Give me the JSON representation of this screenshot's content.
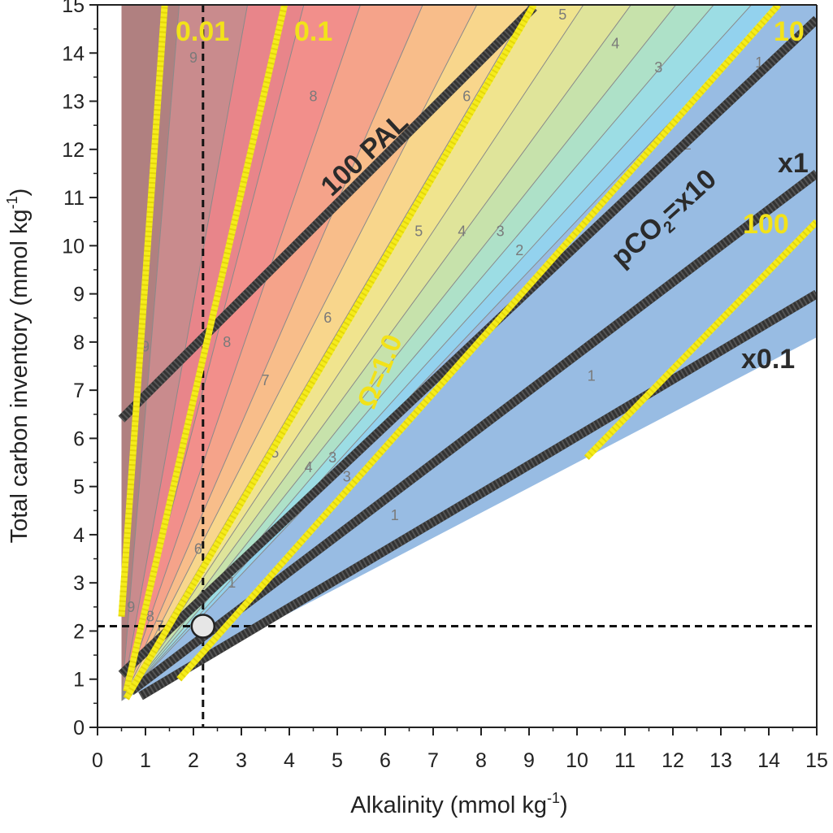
{
  "chart_data": {
    "type": "contour",
    "xlabel": "Alkalinity (mmol kg",
    "xlabel_sup": "-1",
    "xlabel_end": ")",
    "ylabel": "Total carbon inventory (mmol kg",
    "ylabel_sup": "-1",
    "ylabel_end": ")",
    "xlim": [
      0,
      15
    ],
    "ylim": [
      0,
      15
    ],
    "x_ticks": [
      0,
      1,
      2,
      3,
      4,
      5,
      6,
      7,
      8,
      9,
      10,
      11,
      12,
      13,
      14,
      15
    ],
    "y_ticks": [
      0,
      1,
      2,
      3,
      4,
      5,
      6,
      7,
      8,
      9,
      10,
      11,
      12,
      13,
      14,
      15
    ],
    "grid": false,
    "domain_boundary": {
      "left_x": 0.5,
      "lower_edge": [
        [
          0.5,
          0.55
        ],
        [
          15,
          8.1
        ]
      ]
    },
    "contour_bands": [
      {
        "slope": 40,
        "color": "#b08080"
      },
      {
        "slope": 12,
        "color": "#c98b8d"
      },
      {
        "slope": 5.5,
        "color": "#e8858a"
      },
      {
        "slope": 3.8,
        "color": "#f28f8b"
      },
      {
        "slope": 2.9,
        "color": "#f5a38a"
      },
      {
        "slope": 2.3,
        "color": "#f8bd8a"
      },
      {
        "slope": 1.95,
        "color": "#f8d68c"
      },
      {
        "slope": 1.7,
        "color": "#f0e48e"
      },
      {
        "slope": 1.5,
        "color": "#dfe49a"
      },
      {
        "slope": 1.36,
        "color": "#c7e2ab"
      },
      {
        "slope": 1.25,
        "color": "#aee1c8"
      },
      {
        "slope": 1.17,
        "color": "#9cdde4"
      },
      {
        "slope": 1.1,
        "color": "#93d2ee"
      },
      {
        "slope": 1.05,
        "color": "#98bce3"
      },
      {
        "slope": 0.3,
        "color": "#97a0cf"
      }
    ],
    "contour_labels": [
      {
        "text": "9",
        "x": 2.0,
        "y": 13.8
      },
      {
        "text": "8",
        "x": 4.5,
        "y": 13.0
      },
      {
        "text": "5",
        "x": 9.7,
        "y": 14.7
      },
      {
        "text": "4",
        "x": 10.8,
        "y": 14.1
      },
      {
        "text": "3",
        "x": 11.7,
        "y": 13.6
      },
      {
        "text": "6",
        "x": 7.7,
        "y": 13.0
      },
      {
        "text": "2",
        "x": 12.3,
        "y": 12.0
      },
      {
        "text": "1",
        "x": 13.8,
        "y": 13.7
      },
      {
        "text": "5",
        "x": 6.7,
        "y": 10.2
      },
      {
        "text": "4",
        "x": 7.6,
        "y": 10.2
      },
      {
        "text": "3",
        "x": 8.4,
        "y": 10.2
      },
      {
        "text": "2",
        "x": 8.8,
        "y": 9.8
      },
      {
        "text": "6",
        "x": 4.8,
        "y": 8.4
      },
      {
        "text": "7",
        "x": 3.5,
        "y": 7.1
      },
      {
        "text": "9",
        "x": 1.0,
        "y": 7.8
      },
      {
        "text": "8",
        "x": 2.7,
        "y": 7.9
      },
      {
        "text": "5",
        "x": 3.7,
        "y": 5.6
      },
      {
        "text": "4",
        "x": 4.4,
        "y": 5.3
      },
      {
        "text": "3",
        "x": 4.9,
        "y": 5.5
      },
      {
        "text": "3",
        "x": 5.2,
        "y": 5.1
      },
      {
        "text": "6",
        "x": 2.1,
        "y": 3.6
      },
      {
        "text": "1",
        "x": 2.8,
        "y": 2.9
      },
      {
        "text": "1",
        "x": 6.2,
        "y": 4.3
      },
      {
        "text": "1",
        "x": 10.3,
        "y": 7.2
      },
      {
        "text": "9",
        "x": 0.7,
        "y": 2.4
      },
      {
        "text": "8",
        "x": 1.1,
        "y": 2.2
      },
      {
        "text": "7",
        "x": 1.3,
        "y": 2.0
      }
    ],
    "dark_lines": [
      {
        "name": "100 PAL",
        "points": [
          [
            0.5,
            6.4
          ],
          [
            9.1,
            14.95
          ]
        ]
      },
      {
        "name": "pCO2=x10",
        "points": [
          [
            0.5,
            1.1
          ],
          [
            15,
            14.7
          ]
        ]
      },
      {
        "name": "x1",
        "points": [
          [
            0.7,
            0.75
          ],
          [
            15,
            11.5
          ]
        ]
      },
      {
        "name": "x0.1",
        "points": [
          [
            0.9,
            0.65
          ],
          [
            15,
            9.0
          ]
        ]
      }
    ],
    "yellow_lines": [
      {
        "name": "0.01",
        "points": [
          [
            0.5,
            2.3
          ],
          [
            1.4,
            15.0
          ]
        ]
      },
      {
        "name": "0.1",
        "points": [
          [
            0.6,
            0.75
          ],
          [
            3.9,
            15.0
          ]
        ]
      },
      {
        "name": "Ω=1.0",
        "points": [
          [
            0.6,
            0.6
          ],
          [
            9.1,
            15.0
          ]
        ]
      },
      {
        "name": "10",
        "points": [
          [
            1.7,
            1.0
          ],
          [
            14.2,
            15.0
          ]
        ]
      },
      {
        "name": "100",
        "points": [
          [
            10.2,
            5.6
          ],
          [
            15,
            10.5
          ]
        ]
      }
    ],
    "reference_point": {
      "x": 2.2,
      "y": 2.1
    },
    "labels": {
      "pal": "100 PAL",
      "pco2_main": "pCO",
      "pco2_sub": "2",
      "pco2_end": "=x10",
      "x1": "x1",
      "x01": "x0.1",
      "omega": "Ω=1.0",
      "y001": "0.01",
      "y01": "0.1",
      "y10": "10",
      "y100": "100"
    }
  }
}
